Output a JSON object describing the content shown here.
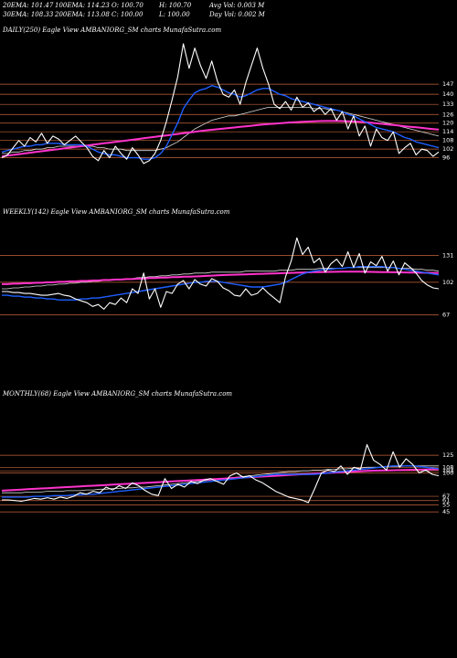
{
  "header": {
    "line1": [
      "20EMA: 101.47",
      "100EMA: 114.23",
      "O: 100.70",
      "H: 100.70",
      "Avg Vol: 0.003 M"
    ],
    "line2": [
      "30EMA: 108.33",
      "200EMA: 113.08",
      "C: 100.00",
      "L: 100.00",
      "Day Vol: 0.002  M"
    ]
  },
  "colors": {
    "background": "#000000",
    "price": "#ffffff",
    "ema_fast": "#1f5fff",
    "ema_slow": "#ff33cc",
    "ema_mid": "#d9d9d9",
    "level_line": "#c8643c",
    "text": "#ffffff"
  },
  "chart_data": [
    {
      "type": "line",
      "title": "DAILY(250) Eagle  View  AMBANIORG_SM charts MunafaSutra.com",
      "y_ticks": [
        "147",
        "140",
        "133",
        "126",
        "120",
        "114",
        "108",
        "102",
        "96"
      ],
      "ylim": [
        85,
        180
      ],
      "levels": [
        147,
        140,
        133,
        126,
        120,
        114,
        108,
        102,
        96
      ],
      "series": [
        {
          "role": "price",
          "values": [
            96,
            98,
            103,
            108,
            104,
            110,
            107,
            113,
            106,
            111,
            109,
            105,
            108,
            111,
            107,
            103,
            97,
            94,
            101,
            96,
            104,
            99,
            95,
            103,
            98,
            92,
            94,
            99,
            108,
            121,
            136,
            152,
            175,
            158,
            172,
            160,
            151,
            163,
            149,
            140,
            138,
            143,
            133,
            148,
            160,
            172,
            158,
            147,
            133,
            130,
            135,
            129,
            138,
            131,
            134,
            128,
            131,
            126,
            130,
            122,
            128,
            116,
            125,
            111,
            118,
            104,
            116,
            110,
            108,
            114,
            99,
            103,
            106,
            98,
            102,
            101,
            97,
            100
          ]
        },
        {
          "role": "ema_fast",
          "values": [
            100,
            101,
            102,
            103,
            104,
            104,
            105,
            105,
            106,
            106,
            106,
            105,
            105,
            105,
            105,
            104,
            102,
            100,
            99,
            98,
            98,
            97,
            96,
            96,
            96,
            95,
            95,
            96,
            99,
            104,
            112,
            120,
            130,
            136,
            141,
            143,
            144,
            146,
            145,
            143,
            141,
            140,
            138,
            139,
            141,
            143,
            144,
            144,
            142,
            140,
            139,
            137,
            136,
            135,
            134,
            133,
            132,
            131,
            130,
            129,
            128,
            126,
            125,
            123,
            121,
            119,
            117,
            116,
            115,
            114,
            112,
            110,
            109,
            107,
            106,
            105,
            104,
            103
          ]
        },
        {
          "role": "ema_mid",
          "values": [
            99,
            99,
            100,
            100,
            101,
            101,
            102,
            102,
            103,
            103,
            104,
            104,
            104,
            104,
            104,
            104,
            104,
            103,
            103,
            102,
            102,
            102,
            101,
            101,
            101,
            101,
            101,
            101,
            102,
            103,
            105,
            107,
            110,
            113,
            116,
            118,
            120,
            122,
            123,
            124,
            125,
            125,
            126,
            127,
            128,
            129,
            130,
            131,
            131,
            131,
            131,
            131,
            131,
            131,
            131,
            130,
            130,
            130,
            129,
            129,
            128,
            127,
            126,
            125,
            124,
            123,
            122,
            121,
            120,
            119,
            118,
            117,
            116,
            115,
            114,
            113,
            112,
            111
          ]
        },
        {
          "role": "ema_slow",
          "values": [
            97,
            97.5,
            98,
            98.5,
            99,
            99.5,
            100,
            100.5,
            101,
            101.5,
            102,
            102.5,
            103,
            103.5,
            104,
            104.5,
            105,
            105.5,
            106,
            106.5,
            107,
            107.5,
            108,
            108.5,
            109,
            109.5,
            110,
            110.5,
            111,
            111.5,
            112,
            112.5,
            113,
            113.5,
            114,
            114.5,
            115,
            115.4,
            115.8,
            116.2,
            116.6,
            117,
            117.4,
            117.8,
            118.2,
            118.6,
            119,
            119.3,
            119.6,
            119.9,
            120.2,
            120.5,
            120.7,
            120.9,
            121.1,
            121.3,
            121.4,
            121.5,
            121.5,
            121.5,
            121.4,
            121.3,
            121.1,
            120.9,
            120.6,
            120.3,
            119.9,
            119.5,
            119.1,
            118.7,
            118.3,
            117.9,
            117.5,
            117.1,
            116.7,
            116.3,
            115.9,
            115.5
          ]
        }
      ]
    },
    {
      "type": "line",
      "title": "WEEKLY(142) Eagle  View  AMBANIORG_SM charts MunafaSutra.com",
      "y_ticks": [
        "131",
        "102",
        "67"
      ],
      "ylim": [
        20,
        170
      ],
      "levels": [
        131,
        102,
        67
      ],
      "series": [
        {
          "role": "price",
          "values": [
            92,
            92,
            91,
            91,
            90,
            90,
            89,
            88,
            88,
            89,
            90,
            88,
            87,
            84,
            82,
            80,
            76,
            78,
            73,
            80,
            78,
            85,
            80,
            95,
            90,
            112,
            84,
            95,
            75,
            92,
            90,
            100,
            104,
            95,
            105,
            100,
            98,
            106,
            103,
            96,
            93,
            88,
            87,
            95,
            88,
            90,
            96,
            90,
            85,
            80,
            108,
            125,
            150,
            132,
            140,
            123,
            128,
            113,
            122,
            127,
            119,
            135,
            118,
            133,
            112,
            124,
            120,
            130,
            114,
            125,
            110,
            123,
            118,
            112,
            104,
            99,
            96,
            95
          ]
        },
        {
          "role": "ema_fast",
          "values": [
            88,
            88,
            87,
            87,
            86,
            86,
            85,
            85,
            84,
            84,
            83,
            83,
            83,
            83,
            84,
            84,
            85,
            85,
            86,
            87,
            88,
            89,
            90,
            91,
            92,
            93,
            94,
            95,
            96,
            97,
            98,
            99,
            100,
            101,
            102,
            102,
            103,
            103,
            103,
            102,
            101,
            100,
            99,
            98,
            97,
            97,
            97,
            98,
            99,
            100,
            102,
            105,
            108,
            111,
            113,
            114,
            115,
            116,
            116,
            117,
            117,
            118,
            118,
            119,
            119,
            119,
            119,
            119,
            118,
            118,
            117,
            116,
            115,
            114,
            113,
            112,
            111,
            110
          ]
        },
        {
          "role": "ema_mid",
          "values": [
            95,
            95,
            96,
            96,
            97,
            97,
            98,
            98,
            99,
            99,
            100,
            100,
            101,
            101,
            102,
            102,
            103,
            103,
            104,
            104,
            105,
            105,
            106,
            106,
            107,
            107,
            108,
            108,
            109,
            109,
            110,
            110,
            111,
            111,
            112,
            112,
            112,
            113,
            113,
            113,
            113,
            113,
            113,
            114,
            114,
            114,
            114,
            114,
            114,
            115,
            115,
            115,
            116,
            116,
            116,
            116,
            117,
            117,
            117,
            117,
            117,
            118,
            118,
            118,
            118,
            118,
            118,
            118,
            118,
            118,
            117,
            117,
            117,
            116,
            116,
            115,
            115,
            114
          ]
        },
        {
          "role": "ema_slow",
          "values": [
            100,
            100,
            100.5,
            100.5,
            101,
            101,
            101.5,
            101.5,
            102,
            102,
            102.5,
            102.5,
            103,
            103,
            103.5,
            103.5,
            104,
            104,
            104.5,
            104.5,
            105,
            105,
            105.5,
            105.5,
            106,
            106,
            106.5,
            106.5,
            107,
            107,
            107.5,
            107.5,
            108,
            108,
            108.3,
            108.6,
            108.9,
            109.2,
            109.5,
            109.8,
            110,
            110.2,
            110.4,
            110.6,
            110.8,
            111,
            111.2,
            111.4,
            111.6,
            111.8,
            112,
            112.2,
            112.4,
            112.6,
            112.8,
            113,
            113.1,
            113.2,
            113.3,
            113.4,
            113.5,
            113.5,
            113.5,
            113.5,
            113.4,
            113.3,
            113.2,
            113.1,
            113,
            112.9,
            112.8,
            112.7,
            112.6,
            112.5,
            112.4,
            112.3,
            112.2,
            112.1
          ]
        }
      ]
    },
    {
      "type": "line",
      "title": "MONTHLY(68) Eagle  View  AMBANIORG_SM charts MunafaSutra.com",
      "y_ticks": [
        "125",
        "108",
        "103",
        "100",
        "67",
        "61",
        "55",
        "45"
      ],
      "ylim": [
        0,
        200
      ],
      "levels": [
        125,
        108,
        103,
        100,
        67,
        61,
        55,
        45
      ],
      "series": [
        {
          "role": "price",
          "values": [
            62,
            62,
            61,
            60,
            62,
            64,
            63,
            65,
            63,
            66,
            64,
            67,
            72,
            70,
            74,
            72,
            80,
            76,
            82,
            78,
            86,
            82,
            75,
            70,
            68,
            92,
            78,
            84,
            80,
            88,
            85,
            90,
            92,
            88,
            84,
            96,
            100,
            94,
            96,
            90,
            86,
            80,
            74,
            70,
            66,
            64,
            62,
            58,
            78,
            100,
            104,
            102,
            110,
            98,
            108,
            105,
            140,
            118,
            112,
            104,
            130,
            108,
            120,
            112,
            100,
            104,
            98,
            96
          ]
        },
        {
          "role": "ema_fast",
          "values": [
            66,
            66,
            66,
            66,
            66,
            67,
            67,
            67,
            68,
            68,
            68,
            69,
            69,
            70,
            70,
            71,
            72,
            73,
            74,
            75,
            76,
            77,
            78,
            79,
            80,
            81,
            82,
            83,
            84,
            85,
            86,
            87,
            88,
            89,
            90,
            91,
            92,
            93,
            94,
            95,
            96,
            97,
            98,
            98,
            98,
            98,
            98,
            98,
            98,
            99,
            100,
            101,
            102,
            103,
            104,
            105,
            106,
            107,
            108,
            109,
            110,
            110,
            110,
            110,
            109,
            108,
            107,
            106
          ]
        },
        {
          "role": "ema_mid",
          "values": [
            72,
            72,
            72,
            72,
            73,
            73,
            73,
            74,
            74,
            74,
            75,
            75,
            75,
            76,
            76,
            77,
            77,
            78,
            78,
            79,
            79,
            80,
            80,
            81,
            82,
            83,
            84,
            85,
            86,
            87,
            88,
            89,
            90,
            91,
            92,
            93,
            94,
            95,
            96,
            97,
            98,
            99,
            100,
            101,
            102,
            102,
            103,
            103,
            104,
            104,
            105,
            105,
            106,
            106,
            107,
            107,
            108,
            108,
            108,
            109,
            109,
            109,
            110,
            110,
            110,
            110,
            110,
            110
          ]
        },
        {
          "role": "ema_slow",
          "values": [
            75,
            75.5,
            76,
            76.5,
            77,
            77.5,
            78,
            78.5,
            79,
            79.5,
            80,
            80.5,
            81,
            81.5,
            82,
            82.5,
            83,
            83.5,
            84,
            84.5,
            85,
            85.5,
            86,
            86.5,
            87,
            87.5,
            88,
            88.5,
            89,
            89.5,
            90,
            90.5,
            91,
            91.5,
            92,
            92.5,
            93,
            93.5,
            94,
            94.5,
            95,
            95.5,
            96,
            96.5,
            97,
            97.5,
            98,
            98.5,
            99,
            99.5,
            100,
            100.5,
            101,
            101.5,
            102,
            102.5,
            103,
            103.2,
            103.4,
            103.6,
            103.8,
            104,
            104.2,
            104.4,
            104.6,
            104.8,
            105,
            105
          ]
        }
      ]
    }
  ]
}
